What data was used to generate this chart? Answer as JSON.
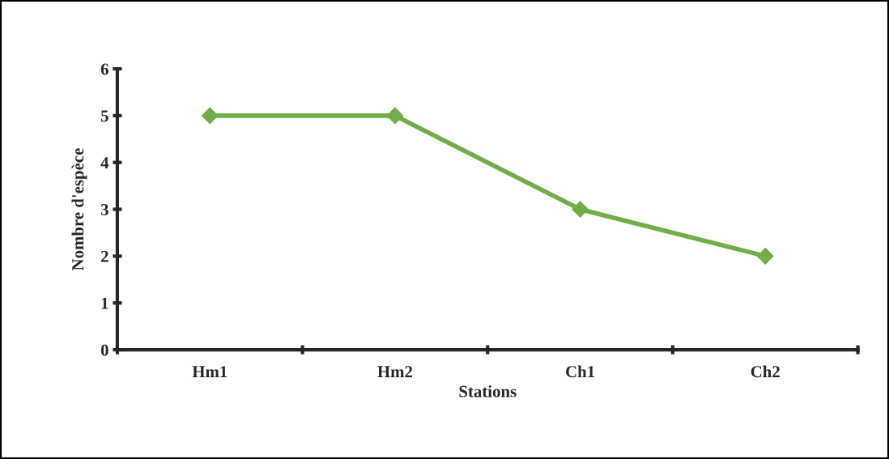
{
  "chart_data": {
    "type": "line",
    "xlabel": "Stations",
    "ylabel": "Nombre d'espèce",
    "categories": [
      "Hm1",
      "Hm2",
      "Ch1",
      "Ch2"
    ],
    "series": [
      {
        "color": "#70ad47",
        "values": [
          5,
          5,
          3,
          2
        ]
      }
    ],
    "ylim": [
      0,
      6
    ],
    "yticks": [
      0,
      1,
      2,
      3,
      4,
      5,
      6
    ],
    "grid": false,
    "marker": "diamond",
    "line_style": "solid"
  }
}
